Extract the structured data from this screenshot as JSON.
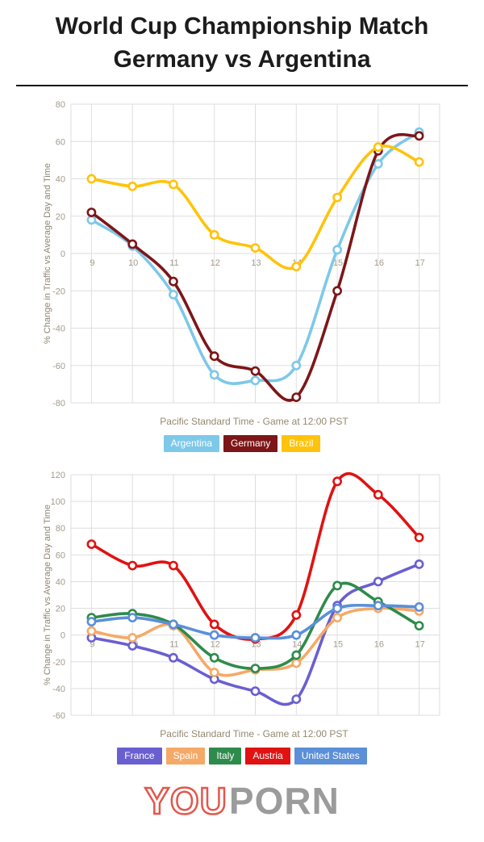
{
  "header": {
    "title_line1": "World Cup Championship Match",
    "title_line2": "Germany vs Argentina"
  },
  "chart_data": [
    {
      "type": "line",
      "title": "",
      "ylabel": "% Change in Traffic vs Average Day and Time",
      "xlabel": "Pacific Standard Time - Game at 12:00 PST",
      "x": [
        9,
        10,
        11,
        12,
        13,
        14,
        15,
        16,
        17
      ],
      "xlim": [
        8.5,
        17.5
      ],
      "ylim": [
        -80,
        80
      ],
      "ytick": 20,
      "grid": true,
      "legend_position": "bottom",
      "series": [
        {
          "name": "Argentina",
          "color": "#7ec8e8",
          "values": [
            18,
            4,
            -22,
            -65,
            -68,
            -60,
            2,
            48,
            65
          ]
        },
        {
          "name": "Germany",
          "color": "#7d1618",
          "values": [
            22,
            5,
            -15,
            -55,
            -63,
            -77,
            -20,
            55,
            63
          ]
        },
        {
          "name": "Brazil",
          "color": "#ffc30b",
          "values": [
            40,
            36,
            37,
            10,
            3,
            -7,
            30,
            57,
            49
          ]
        }
      ]
    },
    {
      "type": "line",
      "title": "",
      "ylabel": "% Change in Traffic vs Average Day and Time",
      "xlabel": "Pacific Standard Time - Game at 12:00 PST",
      "x": [
        9,
        10,
        11,
        12,
        13,
        14,
        15,
        16,
        17
      ],
      "xlim": [
        8.5,
        17.5
      ],
      "ylim": [
        -60,
        120
      ],
      "ytick": 20,
      "grid": true,
      "legend_position": "bottom",
      "series": [
        {
          "name": "France",
          "color": "#6a5fd0",
          "values": [
            -2,
            -8,
            -17,
            -33,
            -42,
            -48,
            22,
            40,
            53
          ]
        },
        {
          "name": "Spain",
          "color": "#f5a967",
          "values": [
            3,
            -2,
            7,
            -28,
            -26,
            -21,
            13,
            20,
            18
          ]
        },
        {
          "name": "Italy",
          "color": "#2e8b4c",
          "values": [
            13,
            16,
            8,
            -17,
            -25,
            -15,
            37,
            25,
            7
          ]
        },
        {
          "name": "Austria",
          "color": "#e01212",
          "values": [
            68,
            52,
            52,
            8,
            -3,
            15,
            115,
            105,
            73
          ]
        },
        {
          "name": "United States",
          "color": "#5b8fd8",
          "values": [
            10,
            13,
            8,
            0,
            -2,
            0,
            20,
            22,
            21
          ]
        }
      ]
    }
  ],
  "footer": {
    "logo_part1": "YOU",
    "logo_part2": "PORN"
  }
}
